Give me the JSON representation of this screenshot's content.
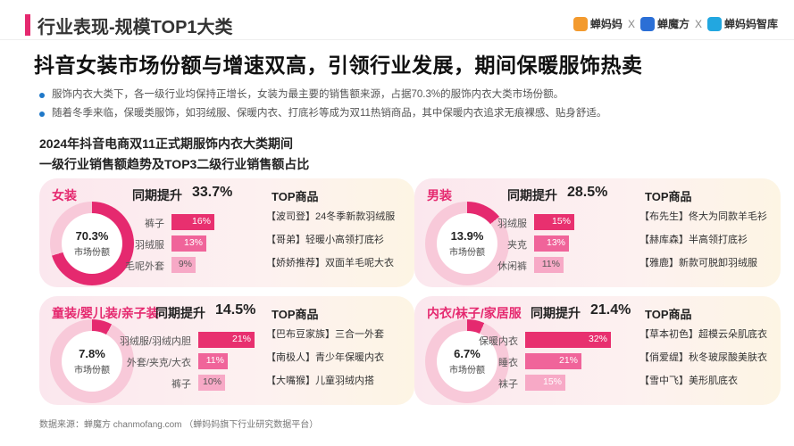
{
  "header": {
    "title": "行业表现-规模TOP1大类",
    "brands": [
      "蝉妈妈",
      "蝉魔方",
      "蝉妈妈智库"
    ],
    "separator": "X"
  },
  "main_title": "抖音女装市场份额与增速双高，引领行业发展，期间保暖服饰热卖",
  "bullets": [
    "服饰内衣大类下，各一级行业均保持正增长，女装为最主要的销售额来源，占据70.3%的服饰内衣大类市场份额。",
    "随着冬季来临，保暖类服饰，如羽绒服、保暖内衣、打底衫等成为双11热销商品，其中保暖内衣追求无痕裸感、贴身舒适。"
  ],
  "subtitle": [
    "2024年抖音电商双11正式期服饰内衣大类期间",
    "一级行业销售额趋势及TOP3二级行业销售额占比"
  ],
  "labels": {
    "growth": "同期提升",
    "top": "TOP商品",
    "share": "市场份额"
  },
  "panels": [
    {
      "name": "女装",
      "growth": "33.7%",
      "share": "70.3%",
      "share_frac": 0.703,
      "bars": [
        {
          "label": "裤子",
          "value": "16%",
          "frac": 0.16
        },
        {
          "label": "羽绒服",
          "value": "13%",
          "frac": 0.13
        },
        {
          "label": "毛呢外套",
          "value": "9%",
          "frac": 0.09
        }
      ],
      "products": [
        "【波司登】24冬季新款羽绒服",
        "【哥弟】轻暖小高领打底衫",
        "【娇娇推荐】双面羊毛呢大衣"
      ]
    },
    {
      "name": "男装",
      "growth": "28.5%",
      "share": "13.9%",
      "share_frac": 0.139,
      "bars": [
        {
          "label": "羽绒服",
          "value": "15%",
          "frac": 0.15
        },
        {
          "label": "夹克",
          "value": "13%",
          "frac": 0.13
        },
        {
          "label": "休闲裤",
          "value": "11%",
          "frac": 0.11
        }
      ],
      "products": [
        "【布先生】佟大为同款羊毛衫",
        "【赫库森】半高领打底衫",
        "【雅鹿】新款可脱卸羽绒服"
      ]
    },
    {
      "name": "童装/婴儿装/亲子装",
      "growth": "14.5%",
      "share": "7.8%",
      "share_frac": 0.078,
      "bars": [
        {
          "label": "羽绒服/羽绒内胆",
          "value": "21%",
          "frac": 0.21
        },
        {
          "label": "外套/夹克/大衣",
          "value": "11%",
          "frac": 0.11
        },
        {
          "label": "裤子",
          "value": "10%",
          "frac": 0.1
        }
      ],
      "products": [
        "【巴布豆家族】三合一外套",
        "【南极人】青少年保暖内衣",
        "【大嘴猴】儿童羽绒内搭"
      ]
    },
    {
      "name": "内衣/袜子/家居服",
      "growth": "21.4%",
      "share": "6.7%",
      "share_frac": 0.067,
      "bars": [
        {
          "label": "保暖内衣",
          "value": "32%",
          "frac": 0.32
        },
        {
          "label": "睡衣",
          "value": "21%",
          "frac": 0.21
        },
        {
          "label": "袜子",
          "value": "15%",
          "frac": 0.15
        }
      ],
      "products": [
        "【草本初色】超模云朵肌底衣",
        "【俏爱缇】秋冬玻尿酸美肤衣",
        "【雪中飞】美形肌底衣"
      ]
    }
  ],
  "colors": {
    "accent": "#e5296f",
    "bar1": "#e8306f",
    "bar2": "#f0649a",
    "bar3": "#f7a9c6",
    "ring_bg": "#f8c9d9"
  },
  "source": "数据来源：蝉魔方 chanmofang.com （蝉妈妈旗下行业研究数据平台）"
}
